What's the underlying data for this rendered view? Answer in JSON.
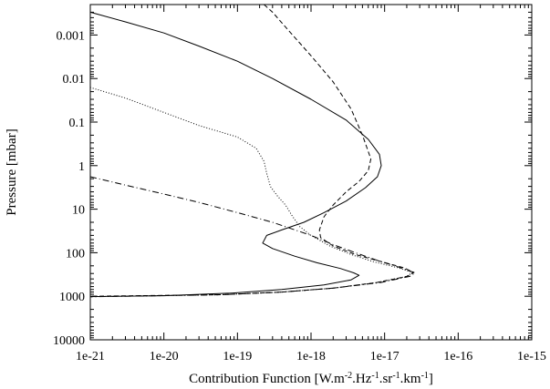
{
  "chart_data": {
    "type": "line",
    "xlabel": {
      "parts": [
        {
          "text": "Contribution Function [W.m",
          "sup": false
        },
        {
          "text": "-2",
          "sup": true
        },
        {
          "text": ".Hz",
          "sup": false
        },
        {
          "text": "-1",
          "sup": true
        },
        {
          "text": ".sr",
          "sup": false
        },
        {
          "text": "-1",
          "sup": true
        },
        {
          "text": ".km",
          "sup": false
        },
        {
          "text": "-1",
          "sup": true
        },
        {
          "text": "]",
          "sup": false
        }
      ]
    },
    "ylabel": "Pressure [mbar]",
    "x_scale": "log",
    "y_scale": "log",
    "y_reversed": true,
    "xlim": [
      1e-21,
      1e-15
    ],
    "ylim": [
      0.0002,
      10000
    ],
    "x_ticks": [
      {
        "value": 1e-21,
        "label": "1e-21"
      },
      {
        "value": 1e-20,
        "label": "1e-20"
      },
      {
        "value": 1e-19,
        "label": "1e-19"
      },
      {
        "value": 1e-18,
        "label": "1e-18"
      },
      {
        "value": 1e-17,
        "label": "1e-17"
      },
      {
        "value": 1e-16,
        "label": "1e-16"
      },
      {
        "value": 1e-15,
        "label": "1e-15"
      }
    ],
    "y_ticks": [
      {
        "value": 0.001,
        "label": "0.001"
      },
      {
        "value": 0.01,
        "label": "0.01"
      },
      {
        "value": 0.1,
        "label": "0.1"
      },
      {
        "value": 1,
        "label": "1"
      },
      {
        "value": 10,
        "label": "10"
      },
      {
        "value": 100,
        "label": "100"
      },
      {
        "value": 1000,
        "label": "1000"
      },
      {
        "value": 10000,
        "label": "10000"
      }
    ],
    "grid": false,
    "series": [
      {
        "style": "solid",
        "points": [
          [
            1e-21,
            0.0003
          ],
          [
            3e-21,
            0.0005
          ],
          [
            1e-20,
            0.0009
          ],
          [
            3e-20,
            0.0018
          ],
          [
            1e-19,
            0.004
          ],
          [
            3e-19,
            0.01
          ],
          [
            1e-18,
            0.03
          ],
          [
            3e-18,
            0.09
          ],
          [
            6e-18,
            0.25
          ],
          [
            8.5e-18,
            0.55
          ],
          [
            9e-18,
            1.0
          ],
          [
            8e-18,
            1.8
          ],
          [
            5.5e-18,
            3.2
          ],
          [
            3e-18,
            6.5
          ],
          [
            1.5e-18,
            12
          ],
          [
            8e-19,
            20
          ],
          [
            4e-19,
            30
          ],
          [
            2.5e-19,
            40
          ],
          [
            2.2e-19,
            60
          ],
          [
            3e-19,
            80
          ],
          [
            6e-19,
            120
          ],
          [
            1.2e-18,
            170
          ],
          [
            2.5e-18,
            230
          ],
          [
            3.8e-18,
            290
          ],
          [
            4.5e-18,
            330
          ],
          [
            3.5e-18,
            420
          ],
          [
            1.5e-18,
            550
          ],
          [
            4e-19,
            700
          ],
          [
            8e-20,
            850
          ],
          [
            1e-20,
            970
          ],
          [
            1e-21,
            1020
          ]
        ]
      },
      {
        "style": "dashed",
        "points": [
          [
            2.3e-19,
            0.0002
          ],
          [
            3e-19,
            0.0003
          ],
          [
            5e-19,
            0.0008
          ],
          [
            1e-18,
            0.003
          ],
          [
            2e-18,
            0.012
          ],
          [
            3.5e-18,
            0.05
          ],
          [
            5e-18,
            0.2
          ],
          [
            6.5e-18,
            0.7
          ],
          [
            6e-18,
            1.3
          ],
          [
            4.5e-18,
            2.3
          ],
          [
            3e-18,
            4
          ],
          [
            2e-18,
            8
          ],
          [
            1.5e-18,
            15
          ],
          [
            1.3e-18,
            30
          ],
          [
            1.35e-18,
            45
          ],
          [
            2e-18,
            70
          ],
          [
            4e-18,
            110
          ],
          [
            9e-18,
            160
          ],
          [
            1.8e-17,
            220
          ],
          [
            2.5e-17,
            285
          ],
          [
            2e-17,
            350
          ],
          [
            8e-18,
            480
          ],
          [
            2e-18,
            650
          ],
          [
            4e-19,
            800
          ],
          [
            6e-20,
            920
          ],
          [
            1e-21,
            1000
          ]
        ]
      },
      {
        "style": "dotted",
        "points": [
          [
            1e-21,
            0.025
          ],
          [
            1e-21,
            0.016
          ],
          [
            3e-21,
            0.028
          ],
          [
            1e-20,
            0.06
          ],
          [
            3e-20,
            0.12
          ],
          [
            1e-19,
            0.22
          ],
          [
            1.8e-19,
            0.4
          ],
          [
            2.3e-19,
            0.8
          ],
          [
            2.5e-19,
            1.5
          ],
          [
            2.8e-19,
            3
          ],
          [
            3.5e-19,
            5
          ],
          [
            4.5e-19,
            8
          ],
          [
            5.5e-19,
            14
          ],
          [
            7e-19,
            25
          ],
          [
            1e-18,
            40
          ],
          [
            1.8e-18,
            70
          ],
          [
            3.5e-18,
            110
          ],
          [
            7e-18,
            160
          ],
          [
            1.5e-17,
            220
          ],
          [
            2.4e-17,
            285
          ],
          [
            2e-17,
            350
          ],
          [
            8e-18,
            480
          ],
          [
            2e-18,
            650
          ],
          [
            4e-19,
            800
          ],
          [
            6e-20,
            920
          ],
          [
            1e-21,
            1020
          ]
        ]
      },
      {
        "style": "dash-dot",
        "points": [
          [
            1e-21,
            1.8
          ],
          [
            3e-21,
            2.8
          ],
          [
            1e-20,
            4.5
          ],
          [
            3e-20,
            7
          ],
          [
            1e-19,
            12
          ],
          [
            3e-19,
            20
          ],
          [
            1e-18,
            40
          ],
          [
            2e-18,
            65
          ],
          [
            4e-18,
            100
          ],
          [
            8e-18,
            150
          ],
          [
            1.5e-17,
            210
          ],
          [
            2.6e-17,
            290
          ],
          [
            2.2e-17,
            350
          ],
          [
            9e-18,
            480
          ],
          [
            2e-18,
            650
          ],
          [
            4e-19,
            800
          ],
          [
            6e-20,
            920
          ],
          [
            1e-21,
            1030
          ]
        ]
      }
    ]
  }
}
